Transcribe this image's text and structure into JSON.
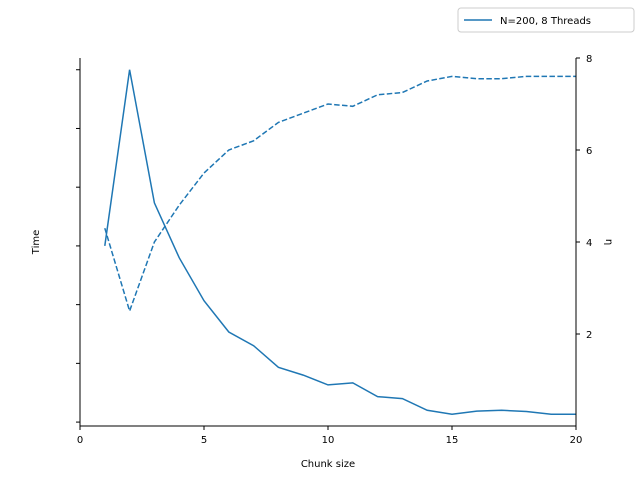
{
  "chart_data": {
    "type": "line",
    "xlabel": "Chunk size",
    "ylabel_left": "Time",
    "ylabel_right": "η",
    "xlim": [
      0,
      20
    ],
    "xticks": [
      0,
      5,
      10,
      15,
      20
    ],
    "ylim_right": [
      0,
      8
    ],
    "yticks_right": [
      2,
      4,
      6,
      8
    ],
    "left_axis_tick_labels_shown": false,
    "legend": {
      "placement": "above-top-right",
      "label": "N=200, 8 Threads"
    },
    "grid": false,
    "color": "#1f77b4",
    "x": [
      1,
      2,
      3,
      4,
      5,
      6,
      7,
      8,
      9,
      10,
      11,
      12,
      13,
      14,
      15,
      16,
      17,
      18,
      19,
      20
    ],
    "series": [
      {
        "name": "N=200, 8 Threads",
        "axis": "left",
        "style": "solid",
        "values": [
          0.55,
          1.0,
          0.66,
          0.52,
          0.41,
          0.33,
          0.295,
          0.24,
          0.22,
          0.195,
          0.2,
          0.165,
          0.16,
          0.13,
          0.12,
          0.128,
          0.13,
          0.127,
          0.12,
          0.12
        ]
      },
      {
        "axis": "right",
        "style": "dashed",
        "values": [
          4.3,
          2.5,
          4.0,
          4.8,
          5.5,
          6.0,
          6.2,
          6.6,
          6.8,
          7.0,
          6.95,
          7.2,
          7.25,
          7.5,
          7.6,
          7.55,
          7.55,
          7.6,
          7.6,
          7.6
        ]
      }
    ]
  }
}
